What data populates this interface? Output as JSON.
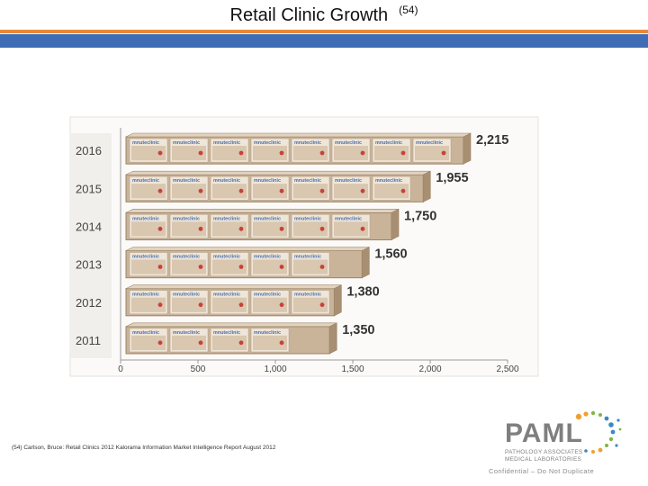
{
  "slide": {
    "title": "Retail Clinic Growth",
    "title_ref": "(54)",
    "colors": {
      "orange_rule": "#E8893A",
      "blue_rule": "#3E6DB5"
    }
  },
  "chart_data": {
    "type": "bar",
    "orientation": "horizontal",
    "categories": [
      "2016",
      "2015",
      "2014",
      "2013",
      "2012",
      "2011"
    ],
    "values": [
      2215,
      1955,
      1750,
      1560,
      1380,
      1350
    ],
    "data_labels": [
      "2,215",
      "1,955",
      "1,750",
      "1,560",
      "1,380",
      "1,350"
    ],
    "xlim": [
      0,
      2500
    ],
    "x_ticks": [
      0,
      500,
      1000,
      1500,
      2000,
      2500
    ],
    "x_tick_labels": [
      "0",
      "500",
      "1,000",
      "1,500",
      "2,000",
      "2,500"
    ],
    "grid": false,
    "bar_style": "photo of stacked product boxes",
    "bar_box_text": "mnuteclinic",
    "colors": {
      "bar": "#C9B49A",
      "bar_dark": "#9C8466",
      "label": "#333333"
    }
  },
  "footnote": "(54) Carlson, Bruce: Retail Clinics 2012 Kalorama Information Market Intelligence Report August 2012",
  "logo": {
    "wordmark": "PAML",
    "line1": "PATHOLOGY ASSOCIATES",
    "line2": "MEDICAL LABORATORIES",
    "colors": {
      "text": "#7F7F7F",
      "dot_orange": "#F0A030",
      "dot_green": "#7DB842",
      "dot_blue": "#3E86C7"
    }
  },
  "confidential": "Confidential – Do Not Duplicate"
}
